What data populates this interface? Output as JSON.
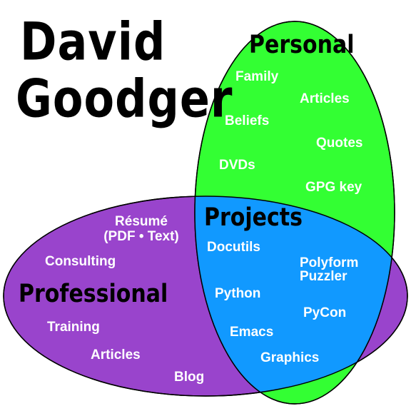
{
  "title": {
    "line1": "David",
    "line2": "Goodger"
  },
  "colors": {
    "personal": "#33ff33",
    "professional": "#9944cc",
    "projects": "#1199ff",
    "outline": "#000000",
    "item_text": "#ffffff",
    "background": "#ffffff"
  },
  "personal": {
    "heading": "Personal",
    "items": [
      "Family",
      "Articles",
      "Beliefs",
      "Quotes",
      "DVDs",
      "GPG key"
    ]
  },
  "professional": {
    "heading": "Professional",
    "resume": {
      "line1": "Résumé",
      "line2": "(PDF • Text)"
    },
    "items": [
      "Consulting",
      "Training",
      "Articles",
      "Blog"
    ]
  },
  "projects": {
    "heading": "Projects",
    "items": [
      "Docutils",
      "Python",
      "Emacs",
      "PyCon",
      "Graphics"
    ],
    "polyform": {
      "line1": "Polyform",
      "line2": "Puzzler"
    }
  }
}
